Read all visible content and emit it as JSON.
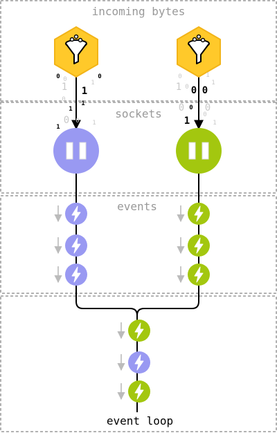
{
  "sections": {
    "incoming": "incoming bytes",
    "sockets": "sockets",
    "events": "events",
    "loop": "event loop"
  },
  "colors": {
    "funnel_fill": "#FFC92A",
    "funnel_stroke": "#F2B418",
    "socket_a": "#9999F2",
    "socket_b": "#A3C70F",
    "frame": "#999999",
    "section_text": "#999999",
    "arrow": "#BBBBBB"
  },
  "bits": {
    "left": [
      {
        "text": "0",
        "dark": true
      },
      {
        "text": "0",
        "dark": false
      },
      {
        "text": "1",
        "dark": false
      },
      {
        "text": "0",
        "dark": false
      },
      {
        "text": "1",
        "dark": false
      },
      {
        "text": "0",
        "dark": true
      },
      {
        "text": "1",
        "dark": true
      },
      {
        "text": "1",
        "dark": true
      },
      {
        "text": "1",
        "dark": true
      },
      {
        "text": "0",
        "dark": false
      },
      {
        "text": "1",
        "dark": true
      },
      {
        "text": "0",
        "dark": false
      },
      {
        "text": "1",
        "dark": false
      }
    ],
    "right": [
      {
        "text": "0",
        "dark": false
      },
      {
        "text": "1",
        "dark": false
      },
      {
        "text": "0",
        "dark": false
      },
      {
        "text": "1",
        "dark": false
      },
      {
        "text": "1",
        "dark": false
      },
      {
        "text": "0",
        "dark": true
      },
      {
        "text": "0",
        "dark": true
      },
      {
        "text": "0",
        "dark": true
      },
      {
        "text": "0",
        "dark": false
      },
      {
        "text": "0",
        "dark": false
      },
      {
        "text": "1",
        "dark": true
      },
      {
        "text": "1",
        "dark": false
      },
      {
        "text": "0",
        "dark": false
      }
    ]
  },
  "event_queues": {
    "left": [
      "a",
      "a",
      "a"
    ],
    "right": [
      "b",
      "b",
      "b"
    ],
    "loop": [
      "b",
      "a",
      "b"
    ]
  }
}
